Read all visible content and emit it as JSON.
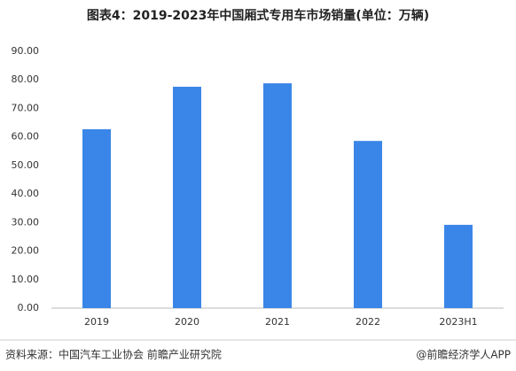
{
  "chart_data": {
    "type": "bar",
    "title": "图表4：2019-2023年中国厢式专用车市场销量(单位：万辆)",
    "categories": [
      "2019",
      "2020",
      "2021",
      "2022",
      "2023H1"
    ],
    "values": [
      62.7,
      77.6,
      78.8,
      58.6,
      29.2
    ],
    "color": "#3a86e8",
    "ylim": [
      0,
      90
    ],
    "yticks": [
      {
        "value": 0,
        "label": "0.00"
      },
      {
        "value": 10,
        "label": "10.00"
      },
      {
        "value": 20,
        "label": "20.00"
      },
      {
        "value": 30,
        "label": "30.00"
      },
      {
        "value": 40,
        "label": "40.00"
      },
      {
        "value": 50,
        "label": "50.00"
      },
      {
        "value": 60,
        "label": "60.00"
      },
      {
        "value": 70,
        "label": "70.00"
      },
      {
        "value": 80,
        "label": "80.00"
      },
      {
        "value": 90,
        "label": "90.00"
      }
    ],
    "grid": false,
    "source": "资料来源：中国汽车工业协会 前瞻产业研究院",
    "credit": "@前瞻经济学人APP"
  }
}
